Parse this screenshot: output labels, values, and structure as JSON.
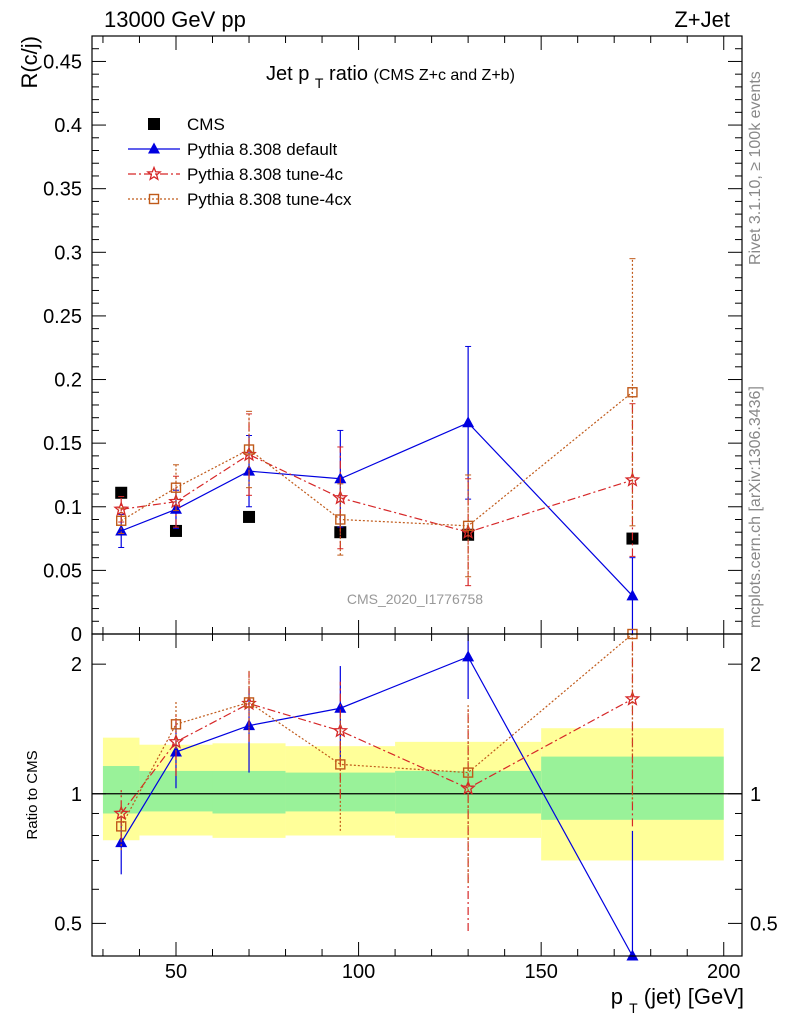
{
  "header": {
    "left": "13000 GeV pp",
    "right": "Z+Jet"
  },
  "side_labels": {
    "rivet": "Rivet 3.1.10, ≥ 100k events",
    "mcplots": "mcplots.cern.ch [arXiv:1306.3436]"
  },
  "chart_data": [
    {
      "type": "scatter",
      "panel": "main",
      "title_main": "Jet p",
      "title_sub": "T",
      "title_rest": " ratio",
      "title_small": "(CMS  Z+c and Z+b)",
      "ylabel": "R(c/j)",
      "watermark": "CMS_2020_I1776758",
      "xlim": [
        27,
        205
      ],
      "ylim": [
        0,
        0.47
      ],
      "yticks": [
        {
          "v": 0,
          "label": "0"
        },
        {
          "v": 0.05,
          "label": "0.05"
        },
        {
          "v": 0.1,
          "label": "0.1"
        },
        {
          "v": 0.15,
          "label": "0.15"
        },
        {
          "v": 0.2,
          "label": "0.2"
        },
        {
          "v": 0.25,
          "label": "0.25"
        },
        {
          "v": 0.3,
          "label": "0.3"
        },
        {
          "v": 0.35,
          "label": "0.35"
        },
        {
          "v": 0.4,
          "label": "0.4"
        },
        {
          "v": 0.45,
          "label": "0.45"
        }
      ],
      "legend": [
        {
          "label": "CMS",
          "series": "cms"
        },
        {
          "label": "Pythia 8.308 default",
          "series": "default"
        },
        {
          "label": "Pythia 8.308 tune-4c",
          "series": "tune4c"
        },
        {
          "label": "Pythia 8.308 tune-4cx",
          "series": "tune4cx"
        }
      ],
      "series": [
        {
          "key": "cms",
          "name": "CMS",
          "color": "#000000",
          "marker": "square",
          "x": [
            35,
            50,
            70,
            95,
            130,
            175
          ],
          "y": [
            0.111,
            0.081,
            0.092,
            0.08,
            0.078,
            0.075
          ],
          "err": [
            0.003,
            0.003,
            0.003,
            0.003,
            0.004,
            0.004
          ]
        },
        {
          "key": "default",
          "name": "Pythia 8.308 default",
          "color": "#0000e0",
          "marker": "triangle",
          "dash": "",
          "x": [
            35,
            50,
            70,
            95,
            130,
            175
          ],
          "y": [
            0.081,
            0.098,
            0.128,
            0.122,
            0.166,
            0.03
          ],
          "err": [
            0.013,
            0.015,
            0.028,
            0.038,
            0.06,
            0.03
          ]
        },
        {
          "key": "tune4c",
          "name": "Pythia 8.308 tune-4c",
          "color": "#d62728",
          "marker": "star",
          "dash": "8,3,2,3",
          "x": [
            35,
            50,
            70,
            95,
            130,
            175
          ],
          "y": [
            0.098,
            0.104,
            0.141,
            0.107,
            0.08,
            0.121
          ],
          "err": [
            0.01,
            0.02,
            0.032,
            0.04,
            0.042,
            0.06
          ]
        },
        {
          "key": "tune4cx",
          "name": "Pythia 8.308 tune-4cx",
          "color": "#c05a1a",
          "marker": "opensquare",
          "dash": "2,2",
          "x": [
            35,
            50,
            70,
            95,
            130,
            175
          ],
          "y": [
            0.089,
            0.115,
            0.145,
            0.09,
            0.085,
            0.19
          ],
          "err": [
            0.01,
            0.018,
            0.03,
            0.028,
            0.04,
            0.105
          ]
        }
      ]
    },
    {
      "type": "scatter",
      "panel": "ratio",
      "ylabel": "Ratio to CMS",
      "xlabel_main": "p",
      "xlabel_sub": "T",
      "xlabel_rest": " (jet) [GeV]",
      "y_scale": "log",
      "xlim": [
        27,
        205
      ],
      "ylim": [
        0.42,
        2.35
      ],
      "xticks": [
        {
          "v": 50,
          "label": "50"
        },
        {
          "v": 100,
          "label": "100"
        },
        {
          "v": 150,
          "label": "150"
        },
        {
          "v": 200,
          "label": "200"
        }
      ],
      "yticks": [
        {
          "v": 0.5,
          "label": "0.5"
        },
        {
          "v": 1,
          "label": "1"
        },
        {
          "v": 2,
          "label": "2"
        }
      ],
      "bands": [
        {
          "xlo": 30,
          "xhi": 40,
          "green": [
            0.9,
            1.16
          ],
          "yellow": [
            0.78,
            1.35
          ]
        },
        {
          "xlo": 40,
          "xhi": 60,
          "green": [
            0.91,
            1.13
          ],
          "yellow": [
            0.8,
            1.3
          ]
        },
        {
          "xlo": 60,
          "xhi": 80,
          "green": [
            0.9,
            1.13
          ],
          "yellow": [
            0.79,
            1.31
          ]
        },
        {
          "xlo": 80,
          "xhi": 110,
          "green": [
            0.91,
            1.12
          ],
          "yellow": [
            0.8,
            1.29
          ]
        },
        {
          "xlo": 110,
          "xhi": 150,
          "green": [
            0.9,
            1.13
          ],
          "yellow": [
            0.79,
            1.32
          ]
        },
        {
          "xlo": 150,
          "xhi": 200,
          "green": [
            0.87,
            1.22
          ],
          "yellow": [
            0.7,
            1.42
          ]
        }
      ],
      "band_colors": {
        "green": "#99f299",
        "yellow": "#ffff99"
      },
      "series": [
        {
          "key": "default",
          "color": "#0000e0",
          "marker": "triangle",
          "dash": "",
          "x": [
            35,
            50,
            70,
            95,
            130,
            175
          ],
          "y": [
            0.77,
            1.25,
            1.44,
            1.58,
            2.08,
            0.42
          ],
          "err": [
            0.12,
            0.22,
            0.32,
            0.4,
            0.42,
            0.4
          ]
        },
        {
          "key": "tune4c",
          "color": "#d62728",
          "marker": "star",
          "dash": "8,3,2,3",
          "x": [
            35,
            50,
            70,
            95,
            130,
            175
          ],
          "y": [
            0.9,
            1.32,
            1.62,
            1.4,
            1.03,
            1.66
          ],
          "err": [
            0.12,
            0.22,
            0.3,
            0.42,
            0.55,
            0.82
          ]
        },
        {
          "key": "tune4cx",
          "color": "#c05a1a",
          "marker": "opensquare",
          "dash": "2,2",
          "x": [
            35,
            50,
            70,
            95,
            130,
            175
          ],
          "y": [
            0.84,
            1.45,
            1.63,
            1.17,
            1.12,
            2.35
          ],
          "err": [
            0.1,
            0.2,
            0.3,
            0.35,
            0.5,
            1.4
          ]
        }
      ]
    }
  ]
}
